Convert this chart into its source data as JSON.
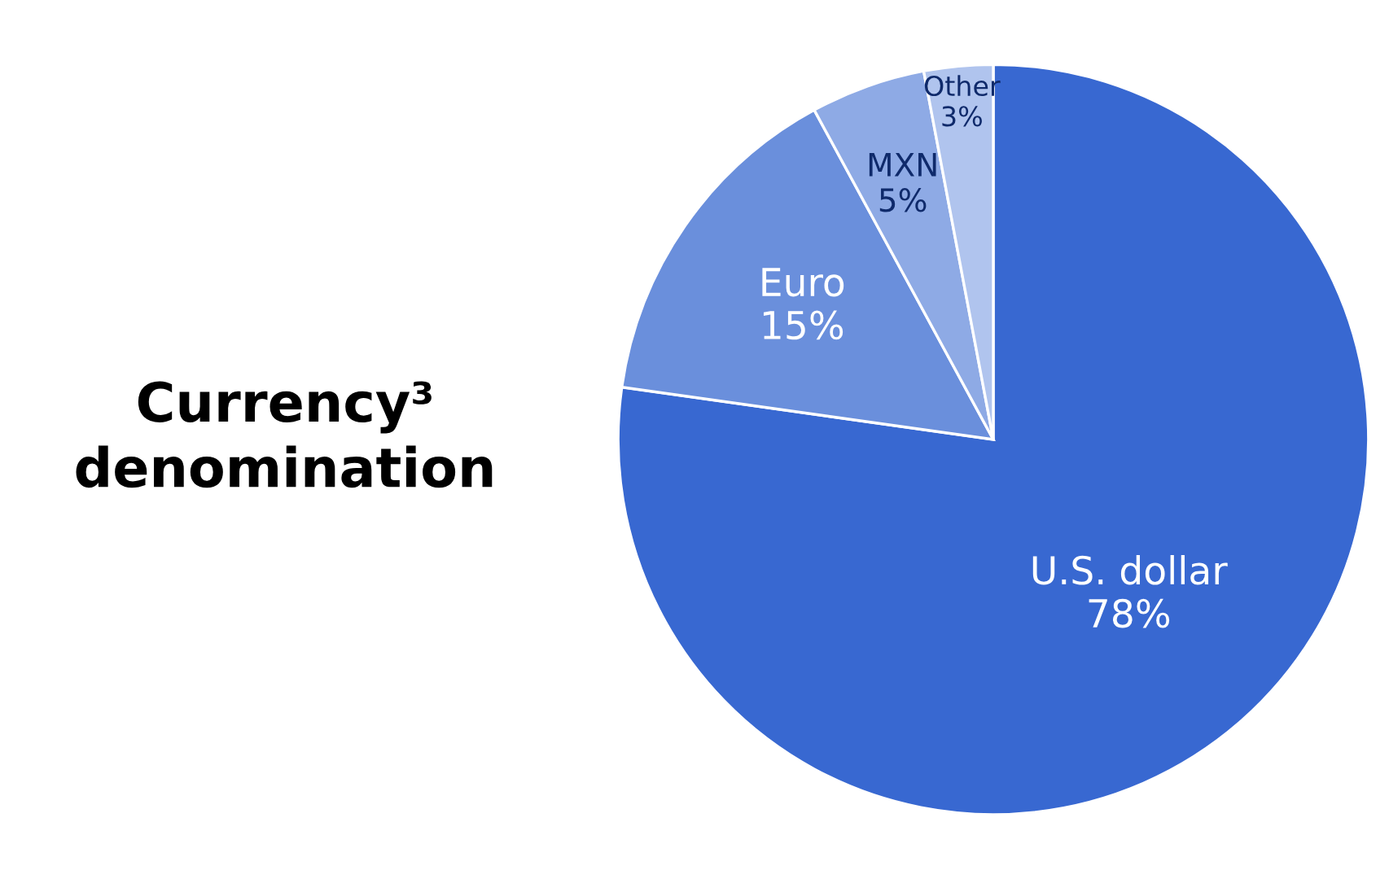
{
  "chart_data": {
    "type": "pie",
    "title": "Currency³ denomination",
    "categories": [
      "U.S. dollar",
      "Euro",
      "MXN",
      "Other"
    ],
    "values": [
      78,
      15,
      5,
      3
    ],
    "value_labels": [
      "78%",
      "15%",
      "5%",
      "3%"
    ],
    "colors": [
      "#3868d1",
      "#6a8fdc",
      "#8eaae5",
      "#b0c4ee"
    ]
  }
}
